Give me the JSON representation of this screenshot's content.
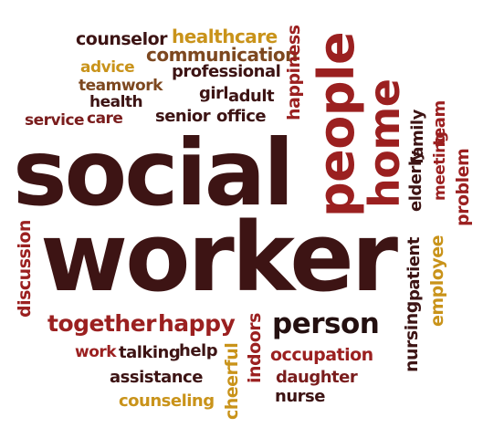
{
  "palette": {
    "dark_maroon": "#3d1414",
    "maroon": "#7a1d1d",
    "red": "#9b2020",
    "brown": "#7d4820",
    "gold": "#c9931a",
    "dark": "#241010"
  },
  "words": {
    "counselor": "counselor",
    "healthcare": "healthcare",
    "communication": "communication",
    "advice": "advice",
    "professional": "professional",
    "teamwork": "teamwork",
    "girl": "girl",
    "adult": "adult",
    "health": "health",
    "service": "service",
    "care": "care",
    "senior": "senior",
    "office": "office",
    "happiness": "happiness",
    "people": "people",
    "home": "home",
    "elderly": "elderly",
    "family": "family",
    "team": "team",
    "meeting": "meeting",
    "problem": "problem",
    "social": "social",
    "worker": "worker",
    "discussion": "discussion",
    "patient": "patient",
    "nursing": "nursing",
    "employee": "employee",
    "together": "together",
    "happy": "happy",
    "person": "person",
    "work": "work",
    "talking": "talking",
    "help": "help",
    "cheerful": "cheerful",
    "indoors": "indoors",
    "occupation": "occupation",
    "assistance": "assistance",
    "daughter": "daughter",
    "nurse": "nurse",
    "counseling": "counseling"
  }
}
